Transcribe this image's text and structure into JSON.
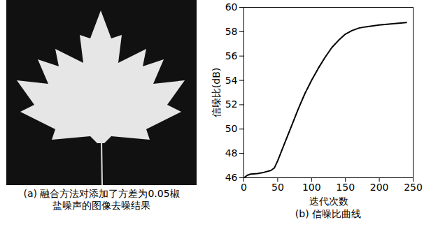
{
  "chart_data": [
    {
      "type": "image",
      "title": "(a) 融合方法对添加了方差为0.05椒盐噪声的图像去噪结果"
    },
    {
      "type": "line",
      "title": "(b) 信噪比曲线",
      "x_label": "迭代次数",
      "y_label": "信噪比(dB)",
      "x": [
        0,
        5,
        10,
        20,
        30,
        40,
        45,
        50,
        60,
        70,
        80,
        90,
        100,
        110,
        120,
        130,
        140,
        150,
        160,
        170,
        180,
        200,
        220,
        240
      ],
      "series": [
        {
          "name": "信噪比",
          "color": "#000000",
          "values": [
            46.0,
            46.2,
            46.3,
            46.35,
            46.45,
            46.6,
            46.8,
            47.4,
            48.8,
            50.2,
            51.6,
            52.9,
            54.0,
            55.0,
            55.9,
            56.7,
            57.3,
            57.8,
            58.1,
            58.3,
            58.4,
            58.55,
            58.65,
            58.75
          ]
        }
      ],
      "xlim": [
        0,
        250
      ],
      "xticks": [
        0,
        50,
        100,
        150,
        200,
        250
      ],
      "ylim": [
        46,
        60
      ],
      "yticks": [
        46,
        48,
        50,
        52,
        54,
        56,
        58,
        60
      ],
      "grid": false
    }
  ]
}
